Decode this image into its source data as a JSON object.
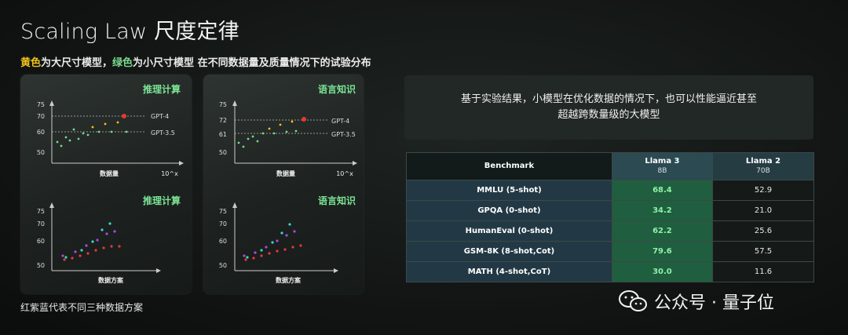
{
  "title": "Scaling Law 尺度定律",
  "subtitle": {
    "part_yellow": "黄色",
    "part1": "为大尺寸模型，",
    "part_green": "绿色",
    "part2": "为小尺寸模型 在不同数据量及质量情况下的试验分布"
  },
  "footnote": "红紫蓝代表不同三种数据方案",
  "summary": {
    "line1": "基于实验结果，小模型在优化数据的情况下，也可以性能逼近甚至",
    "line2": "超越跨数量级的大模型"
  },
  "colors": {
    "yellow": "#f0c419",
    "green": "#7bd88f",
    "chart_title": "#7be495",
    "red": "#e53935",
    "purple": "#a64ce0",
    "cyan": "#3dd6c6"
  },
  "chart_data": [
    {
      "type": "scatter",
      "title": "推理计算",
      "xlabel": "数据量",
      "xlabel_right": "10^x",
      "yticks": [
        "75",
        "70",
        "60",
        "50"
      ],
      "reference_lines": [
        {
          "label": "GPT-4",
          "y": 70
        },
        {
          "label": "GPT-3.5",
          "y": 60
        }
      ],
      "highlight_point": {
        "label": "GPT-4",
        "color": "red"
      }
    },
    {
      "type": "scatter",
      "title": "语言知识",
      "xlabel": "数据量",
      "xlabel_right": "10^x",
      "yticks": [
        "75",
        "72",
        "61",
        "50"
      ],
      "reference_lines": [
        {
          "label": "GPT-4",
          "y": 72
        },
        {
          "label": "GPT-3.5",
          "y": 61
        }
      ],
      "highlight_point": {
        "label": "GPT-4",
        "color": "red"
      }
    },
    {
      "type": "scatter",
      "title": "推理计算",
      "xlabel": "数据方案",
      "yticks": [
        "75",
        "70",
        "60",
        "50"
      ],
      "series": [
        {
          "color": "red"
        },
        {
          "color": "purple"
        },
        {
          "color": "cyan"
        }
      ]
    },
    {
      "type": "scatter",
      "title": "语言知识",
      "xlabel": "数据方案",
      "yticks": [
        "75",
        "70",
        "60",
        "50"
      ],
      "series": [
        {
          "color": "red"
        },
        {
          "color": "purple"
        },
        {
          "color": "cyan"
        }
      ]
    }
  ],
  "table": {
    "header": {
      "benchmark": "Benchmark",
      "llama3": "Llama 3",
      "llama3_size": "8B",
      "llama2": "Llama 2",
      "llama2_size": "70B"
    },
    "rows": [
      {
        "name": "MMLU (5-shot)",
        "llama3": "68.4",
        "llama2": "52.9"
      },
      {
        "name": "GPQA (0-shot)",
        "llama3": "34.2",
        "llama2": "21.0"
      },
      {
        "name": "HumanEval (0-shot)",
        "llama3": "62.2",
        "llama2": "25.6"
      },
      {
        "name": "GSM-8K (8-shot,Cot)",
        "llama3": "79.6",
        "llama2": "57.5"
      },
      {
        "name": "MATH (4-shot,CoT)",
        "llama3": "30.0",
        "llama2": "11.6"
      }
    ]
  },
  "watermark": {
    "text": "公众号 · 量子位",
    "icon": "wechat-icon"
  }
}
